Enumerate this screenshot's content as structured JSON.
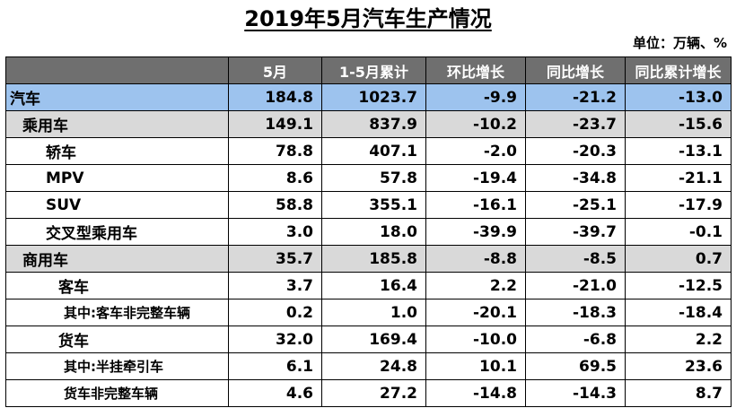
{
  "title": "2019年5月汽车生产情况",
  "unit": "单位：万辆、%",
  "columns": [
    "",
    "5月",
    "1-5月累计",
    "环比增长",
    "同比增长",
    "同比累计增长"
  ],
  "rows": [
    {
      "name": "汽车",
      "level": 0,
      "cells": [
        "184.8",
        "1023.7",
        "-9.9",
        "-21.2",
        "-13.0"
      ]
    },
    {
      "name": "乘用车",
      "level": 1,
      "cells": [
        "149.1",
        "837.9",
        "-10.2",
        "-23.7",
        "-15.6"
      ]
    },
    {
      "name": "轿车",
      "level": 2,
      "cells": [
        "78.8",
        "407.1",
        "-2.0",
        "-20.3",
        "-13.1"
      ]
    },
    {
      "name": "MPV",
      "level": 2,
      "cells": [
        "8.6",
        "57.8",
        "-19.4",
        "-34.8",
        "-21.1"
      ]
    },
    {
      "name": "SUV",
      "level": 2,
      "cells": [
        "58.8",
        "355.1",
        "-16.1",
        "-25.1",
        "-17.9"
      ]
    },
    {
      "name": "交叉型乘用车",
      "level": 2,
      "cells": [
        "3.0",
        "18.0",
        "-39.9",
        "-39.7",
        "-0.1"
      ]
    },
    {
      "name": "商用车",
      "level": 1,
      "cells": [
        "35.7",
        "185.8",
        "-8.8",
        "-8.5",
        "0.7"
      ]
    },
    {
      "name": "客车",
      "level": 2,
      "cells": [
        "3.7",
        "16.4",
        "2.2",
        "-21.0",
        "-12.5"
      ]
    },
    {
      "name": "其中:客车非完整车辆",
      "level": 3,
      "cells": [
        "0.2",
        "1.0",
        "-20.1",
        "-18.3",
        "-18.4"
      ]
    },
    {
      "name": "货车",
      "level": 2,
      "cells": [
        "32.0",
        "169.4",
        "-10.0",
        "-6.8",
        "2.2"
      ]
    },
    {
      "name": "其中:半挂牵引车",
      "level": 3,
      "cells": [
        "6.1",
        "24.8",
        "10.1",
        "69.5",
        "23.6"
      ]
    },
    {
      "name": "货车非完整车辆",
      "level": 3,
      "cells": [
        "4.6",
        "27.2",
        "-14.8",
        "-14.3",
        "8.7"
      ]
    }
  ]
}
